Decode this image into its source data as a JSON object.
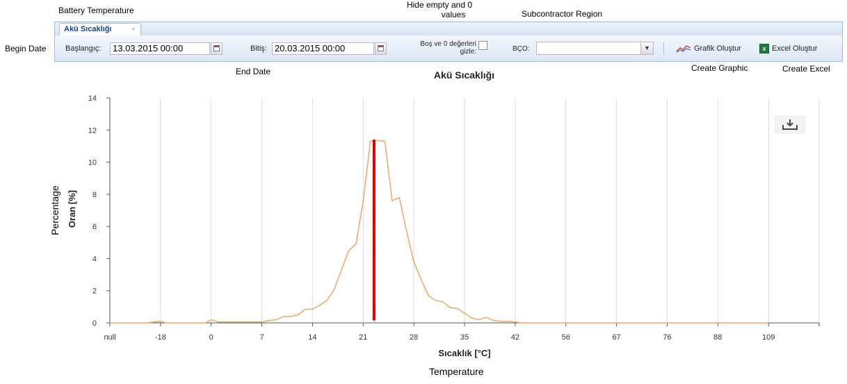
{
  "annotations": {
    "battery_temperature": "Battery Temperature",
    "hide_empty_line1": "Hide empty and 0",
    "hide_empty_line2": "values",
    "subcontractor_region": "Subcontractor Region",
    "begin_date": "Begin Date",
    "end_date": "End Date",
    "create_graphic": "Create Graphic",
    "create_excel": "Create Excel",
    "percentage": "Percentage",
    "temperature": "Temperature"
  },
  "tab": {
    "label": "Akü Sıcaklığı",
    "close": "×"
  },
  "toolbar": {
    "start_label": "Başlangıç:",
    "start_value": "13.03.2015 00:00",
    "end_label": "Bitiş:",
    "end_value": "20.03.2015 00:00",
    "hide_label_line1": "Boş ve 0 değerleri",
    "hide_label_line2": "gizle:",
    "hide_checked": false,
    "bco_label": "BÇO:",
    "bco_value": "",
    "graph_button": "Grafik Oluştur",
    "excel_button": "Excel Oluştur"
  },
  "chart_data": {
    "type": "line",
    "title": "Akü Sıcaklığı",
    "xlabel": "Sıcaklık [°C]",
    "ylabel": "Oran [%]",
    "ylim": [
      0,
      14
    ],
    "yticks": [
      0,
      2,
      4,
      6,
      8,
      10,
      12,
      14
    ],
    "xtick_labels": [
      "null",
      "-18",
      "0",
      "7",
      "14",
      "21",
      "28",
      "35",
      "42",
      "56",
      "67",
      "76",
      "88",
      "109"
    ],
    "grid": "vertical",
    "line_color": "#f4a460",
    "marker_color": "#e00000",
    "marker_x": 22.5,
    "marker_y": 11.4,
    "series": [
      {
        "values_x": [
          -25,
          -22,
          -20,
          -18,
          -16,
          -14,
          -12,
          -10,
          -8,
          -6,
          -4,
          -2,
          0,
          1,
          2,
          3,
          4,
          5,
          6,
          7,
          8,
          9,
          10,
          11,
          12,
          13,
          14,
          15,
          16,
          17,
          18,
          19,
          20,
          21,
          22,
          23,
          24,
          25,
          26,
          27,
          28,
          29,
          30,
          31,
          32,
          33,
          34,
          35,
          36,
          37,
          38,
          39,
          40,
          41,
          42,
          44,
          46,
          48,
          50,
          52,
          54,
          56,
          58,
          60,
          62,
          64,
          66,
          67,
          69,
          71,
          73,
          75,
          76,
          78,
          80,
          82,
          84,
          86,
          88,
          92,
          96,
          100,
          104,
          109
        ],
        "values_y": [
          0,
          0,
          0,
          0.1,
          0,
          0,
          0,
          0,
          0,
          0,
          0,
          0,
          0.2,
          0.05,
          0.05,
          0.05,
          0.05,
          0.05,
          0.05,
          0.05,
          0.15,
          0.2,
          0.4,
          0.4,
          0.5,
          0.85,
          0.85,
          1.1,
          1.4,
          2.1,
          3.3,
          4.5,
          4.9,
          7.6,
          11.3,
          11.35,
          11.3,
          7.6,
          7.8,
          5.7,
          3.8,
          2.7,
          1.7,
          1.4,
          1.3,
          0.95,
          0.9,
          0.6,
          0.3,
          0.2,
          0.35,
          0.15,
          0.1,
          0.1,
          0.05,
          0,
          0,
          0,
          0,
          0,
          0,
          0,
          0,
          0,
          0,
          0,
          0,
          0,
          0,
          0,
          0,
          0,
          0,
          0,
          0,
          0,
          0,
          0,
          0,
          0,
          0,
          0,
          0,
          0
        ]
      }
    ]
  }
}
